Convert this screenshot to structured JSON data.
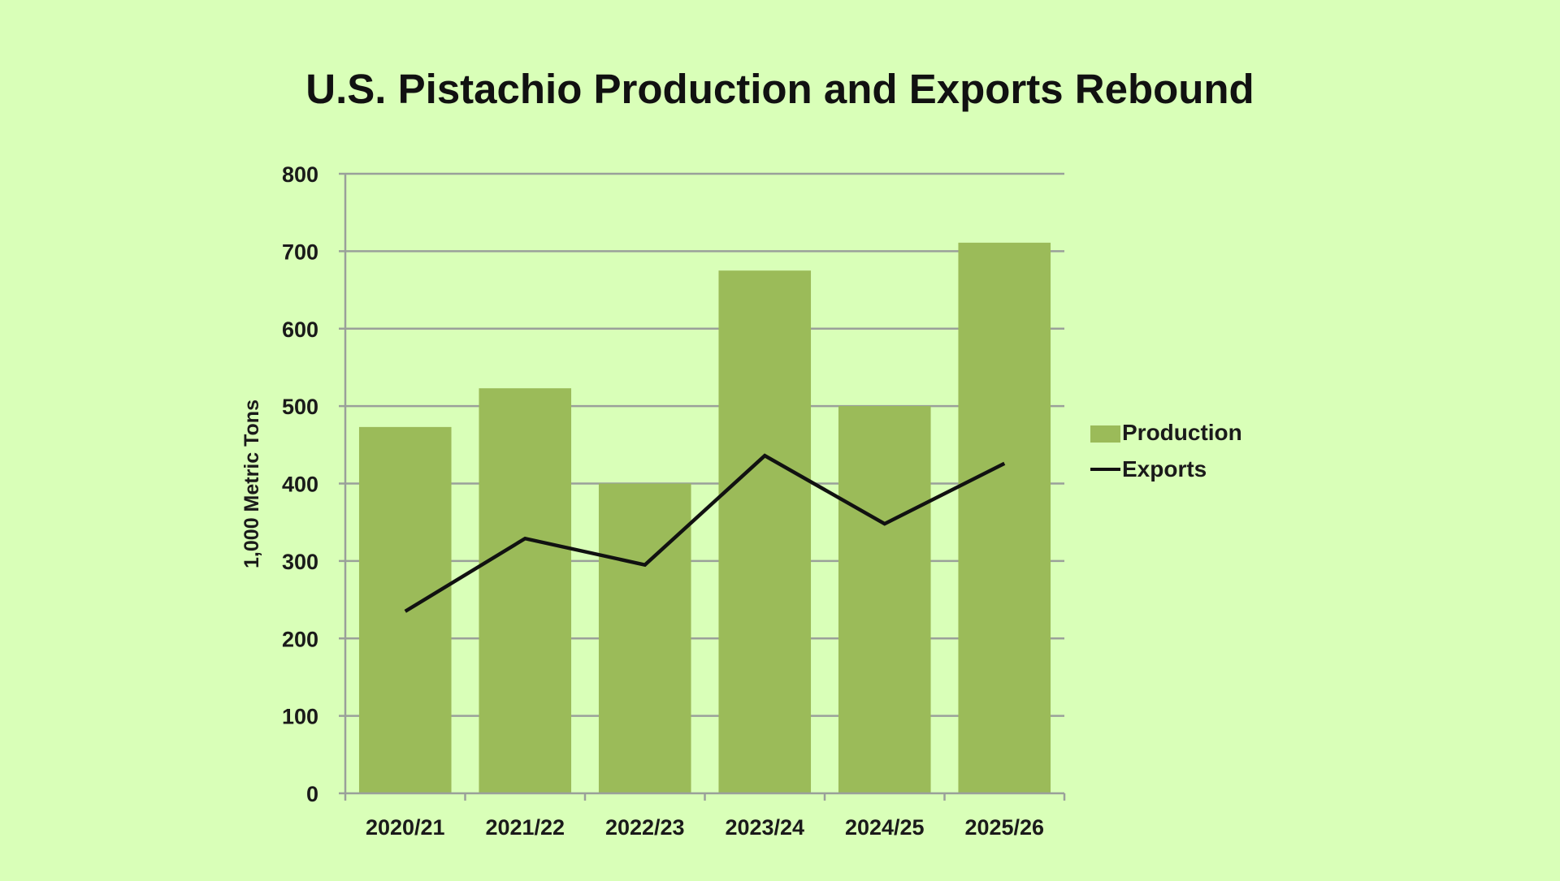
{
  "chart_data": {
    "type": "bar",
    "title": "U.S. Pistachio Production and Exports Rebound",
    "xlabel": "",
    "ylabel": "1,000 Metric Tons",
    "ylim": [
      0,
      800
    ],
    "yticks": [
      0,
      100,
      200,
      300,
      400,
      500,
      600,
      700,
      800
    ],
    "grid": true,
    "legend_position": "right",
    "categories": [
      "2020/21",
      "2021/22",
      "2022/23",
      "2023/24",
      "2024/25",
      "2025/26"
    ],
    "series": [
      {
        "name": "Production",
        "type": "bar",
        "color": "#9bbb59",
        "values": [
          473,
          523,
          400,
          675,
          500,
          711
        ]
      },
      {
        "name": "Exports",
        "type": "line",
        "color": "#111111",
        "values": [
          235,
          329,
          295,
          436,
          348,
          426
        ]
      }
    ]
  },
  "colors": {
    "background": "#d9ffb8",
    "gridline": "#9aa09a",
    "axis": "#9aa09a"
  }
}
